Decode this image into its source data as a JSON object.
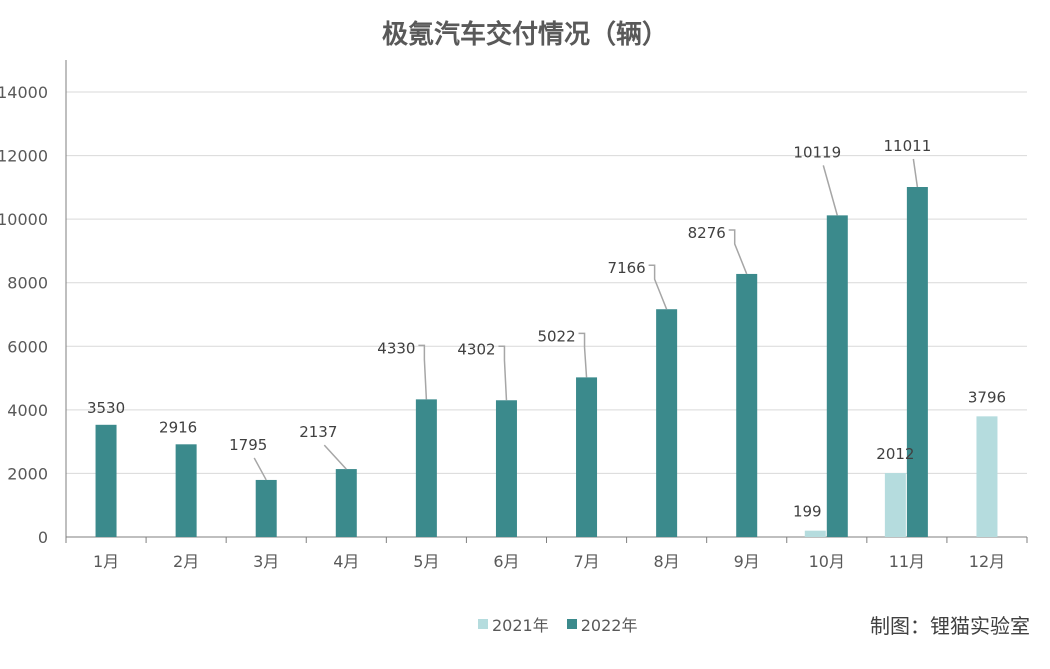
{
  "title": "极氪汽车交付情况（辆）",
  "credit": "制图：锂猫实验室",
  "colors": {
    "s2021": "#b5dcde",
    "s2022": "#3b8a8c",
    "grid": "#d9d9d9",
    "axis": "#7f7f7f",
    "text": "#595959",
    "leader": "#a6a6a6"
  },
  "chart_data": {
    "type": "bar",
    "title": "极氪汽车交付情况（辆）",
    "categories": [
      "1月",
      "2月",
      "3月",
      "4月",
      "5月",
      "6月",
      "7月",
      "8月",
      "9月",
      "10月",
      "11月",
      "12月"
    ],
    "series": [
      {
        "name": "2021年",
        "values": [
          null,
          null,
          null,
          null,
          null,
          null,
          null,
          null,
          null,
          199,
          2012,
          3796
        ]
      },
      {
        "name": "2022年",
        "values": [
          3530,
          2916,
          1795,
          2137,
          4330,
          4302,
          5022,
          7166,
          8276,
          10119,
          11011,
          null
        ]
      }
    ],
    "ylim": [
      0,
      15000
    ],
    "yticks": [
      0,
      2000,
      4000,
      6000,
      8000,
      10000,
      12000,
      14000
    ],
    "grid": true,
    "legend": "bottom"
  }
}
